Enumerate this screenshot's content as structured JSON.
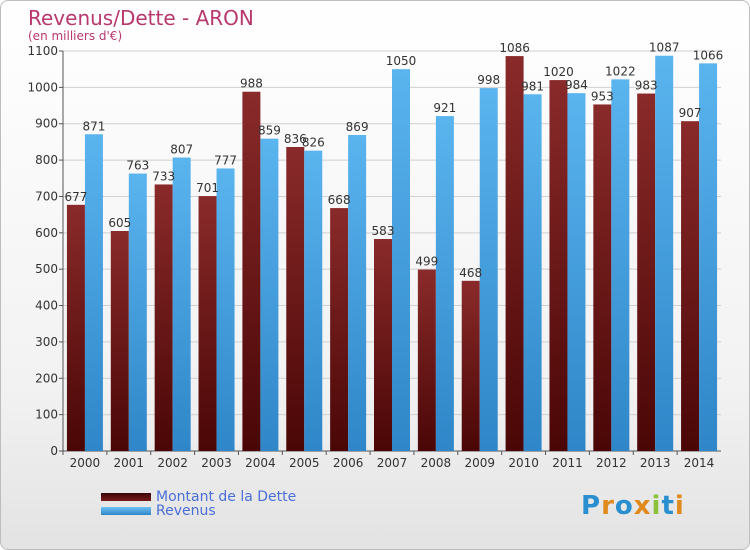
{
  "header": {
    "title": "Revenus/Dette - ARON",
    "subtitle": "(en milliers d'€)"
  },
  "legend": {
    "debt_label": "Montant de la Dette",
    "revenue_label": "Revenus"
  },
  "logo": {
    "text": "Proxiti"
  },
  "colors": {
    "debt": "#7a1a1a",
    "revenue": "#4aa3e0",
    "title": "#b8386e"
  },
  "chart_data": {
    "type": "bar",
    "title": "Revenus/Dette - ARON",
    "subtitle": "(en milliers d'€)",
    "categories": [
      "2000",
      "2001",
      "2002",
      "2003",
      "2004",
      "2005",
      "2006",
      "2007",
      "2008",
      "2009",
      "2010",
      "2011",
      "2012",
      "2013",
      "2014"
    ],
    "series": [
      {
        "name": "Montant de la Dette",
        "values": [
          677,
          605,
          733,
          701,
          988,
          836,
          668,
          583,
          499,
          468,
          1086,
          1020,
          953,
          983,
          907
        ]
      },
      {
        "name": "Revenus",
        "values": [
          871,
          763,
          807,
          777,
          859,
          826,
          869,
          1050,
          921,
          998,
          981,
          984,
          1022,
          1087,
          1066
        ]
      }
    ],
    "ylim": [
      0,
      1100
    ],
    "yticks": [
      0,
      100,
      200,
      300,
      400,
      500,
      600,
      700,
      800,
      900,
      1000,
      1100
    ],
    "grid": true,
    "legend_position": "bottom-left"
  }
}
